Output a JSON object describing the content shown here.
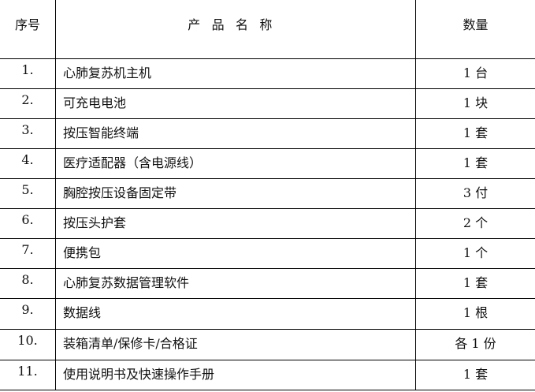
{
  "header": {
    "index": "序号",
    "name": "产品名称",
    "qty": "数量"
  },
  "rows": [
    {
      "index": "1.",
      "name": "心肺复苏机主机",
      "qty": "1 台"
    },
    {
      "index": "2.",
      "name": "可充电电池",
      "qty": "1 块"
    },
    {
      "index": "3.",
      "name": "按压智能终端",
      "qty": "1 套"
    },
    {
      "index": "4.",
      "name": "医疗适配器（含电源线）",
      "qty": "1 套"
    },
    {
      "index": "5.",
      "name": "胸腔按压设备固定带",
      "qty": "3 付"
    },
    {
      "index": "6.",
      "name": "按压头护套",
      "qty": "2 个"
    },
    {
      "index": "7.",
      "name": "便携包",
      "qty": "1 个"
    },
    {
      "index": "8.",
      "name": "心肺复苏数据管理软件",
      "qty": "1 套"
    },
    {
      "index": "9.",
      "name": "数据线",
      "qty": "1 根"
    },
    {
      "index": "10.",
      "name": "装箱清单/保修卡/合格证",
      "qty": "各 1 份"
    },
    {
      "index": "11.",
      "name": "使用说明书及快速操作手册",
      "qty": "1 套"
    }
  ]
}
